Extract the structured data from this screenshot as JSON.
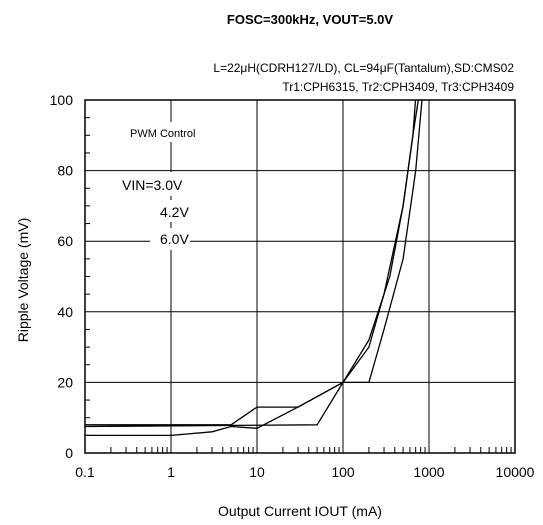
{
  "chart_data": {
    "type": "line",
    "title": "FOSC=300kHz, VOUT=5.0V",
    "subtitle_lines": [
      "L=22μH(CDRH127/LD), CL=94μF(Tantalum),SD:CMS02",
      "Tr1:CPH6315, Tr2:CPH3409, Tr3:CPH3409"
    ],
    "xlabel": "Output Current  IOUT (mA)",
    "ylabel": "Ripple Voltage  (mV)",
    "x_scale": "log",
    "xlim": [
      0.1,
      10000
    ],
    "ylim": [
      0,
      100
    ],
    "x_ticks": [
      "0.1",
      "1",
      "10",
      "100",
      "1000",
      "10000"
    ],
    "y_ticks": [
      "0",
      "20",
      "40",
      "60",
      "80",
      "100"
    ],
    "grid": true,
    "annotations": {
      "mode": "PWM  Control",
      "vin_label": "VIN=3.0V",
      "vin_2": "4.2V",
      "vin_3": "6.0V"
    },
    "series": [
      {
        "x": [
          0.1,
          1,
          3,
          5,
          10,
          30,
          100,
          200,
          350,
          500,
          650,
          750,
          900
        ],
        "y": [
          5,
          5,
          6,
          7.5,
          7,
          13,
          20,
          32,
          50,
          70,
          90,
          100,
          120
        ]
      },
      {
        "x": [
          0.1,
          5,
          10,
          30,
          100,
          200,
          300,
          500,
          650,
          800
        ],
        "y": [
          8,
          8,
          13,
          13,
          20,
          30,
          45,
          70,
          90,
          120
        ]
      },
      {
        "x": [
          0.1,
          50,
          100,
          200,
          300,
          500,
          700,
          900
        ],
        "y": [
          7.5,
          8,
          20,
          20,
          35,
          55,
          80,
          110
        ]
      }
    ]
  }
}
